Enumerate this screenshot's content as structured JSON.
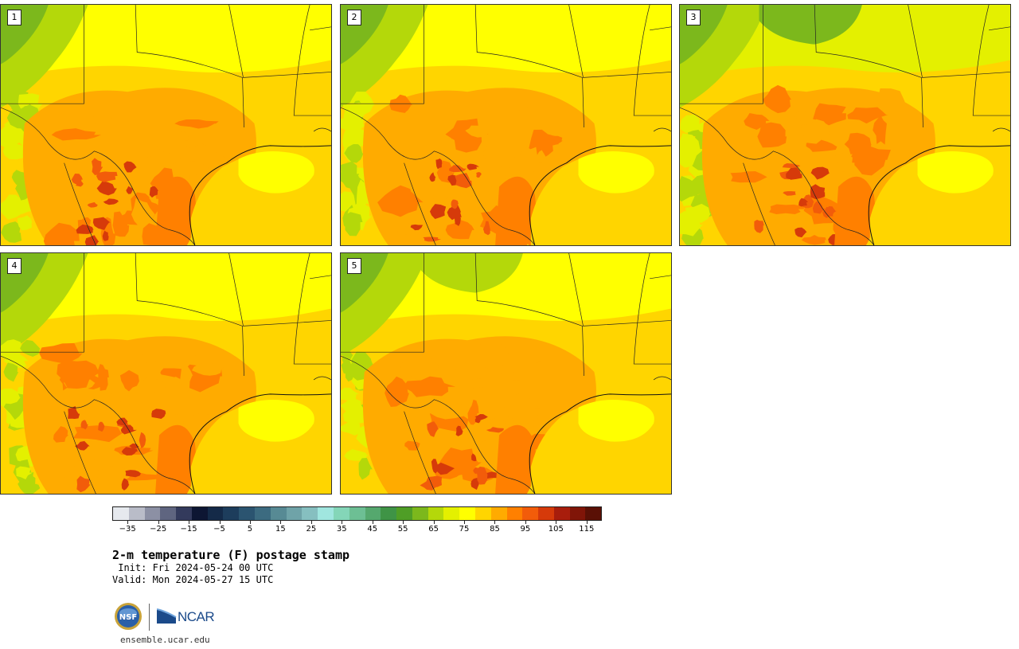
{
  "stamps": [
    {
      "label": "1",
      "variant": 0
    },
    {
      "label": "2",
      "variant": 1
    },
    {
      "label": "3",
      "variant": 2
    },
    {
      "label": "4",
      "variant": 3
    },
    {
      "label": "5",
      "variant": 4
    }
  ],
  "colorbar": {
    "colors": [
      "#e6e9ee",
      "#b9bcc8",
      "#8c90a4",
      "#5f6580",
      "#333a5c",
      "#0d1633",
      "#142a48",
      "#1d3d5c",
      "#2b5470",
      "#3c6b80",
      "#578a94",
      "#6fa3a8",
      "#86bfc0",
      "#a0e6df",
      "#84d6b8",
      "#6dbf94",
      "#55a86e",
      "#3f9446",
      "#4f9e26",
      "#7cb81c",
      "#b4d80a",
      "#e4f000",
      "#ffff00",
      "#ffd500",
      "#ffab00",
      "#ff8000",
      "#f25c0a",
      "#d63a0a",
      "#a81d0c",
      "#801508",
      "#5a1005"
    ],
    "tick_labels": [
      "−35",
      "−25",
      "−15",
      "−5",
      "5",
      "15",
      "25",
      "35",
      "45",
      "55",
      "65",
      "75",
      "85",
      "95",
      "105",
      "115"
    ],
    "min": -40,
    "max": 120
  },
  "title": "2-m temperature (F) postage stamp",
  "init": " Init: Fri 2024-05-24 00 UTC",
  "valid": "Valid: Mon 2024-05-27 15 UTC",
  "logos": {
    "ncar": "NCAR"
  },
  "site": "ensemble.ucar.edu"
}
